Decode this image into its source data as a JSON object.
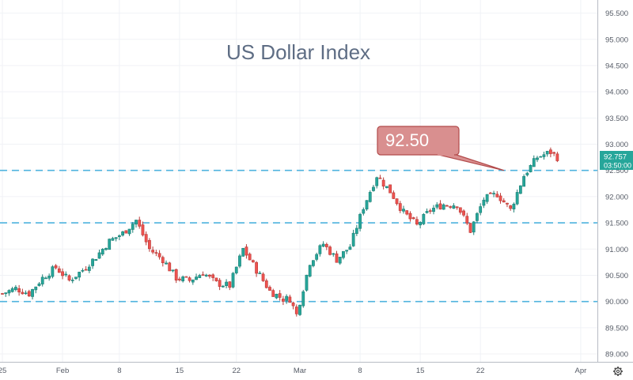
{
  "chart_data": {
    "type": "candlestick",
    "title": "US Dollar Index",
    "ylim": [
      88.85,
      95.75
    ],
    "grid": true,
    "y_ticks": [
      "95.500",
      "95.000",
      "94.500",
      "94.000",
      "93.500",
      "93.000",
      "92.500",
      "92.000",
      "91.500",
      "91.000",
      "90.500",
      "90.000",
      "89.500",
      "89.000"
    ],
    "x_ticks": [
      "25",
      "Feb",
      "8",
      "15",
      "22",
      "Mar",
      "8",
      "15",
      "22",
      "Apr"
    ],
    "last_price": "92.757",
    "countdown": "03:50:00",
    "horizontal_levels": [
      92.5,
      91.5,
      90.0
    ],
    "callout": {
      "label": "92.50",
      "value": 92.5
    },
    "anchors": [
      {
        "day": 0,
        "v": 90.15
      },
      {
        "day": 2,
        "v": 90.25
      },
      {
        "day": 4,
        "v": 90.15
      },
      {
        "day": 6,
        "v": 90.45
      },
      {
        "day": 8,
        "v": 90.65
      },
      {
        "day": 10,
        "v": 90.4
      },
      {
        "day": 12,
        "v": 90.6
      },
      {
        "day": 14,
        "v": 90.85
      },
      {
        "day": 16,
        "v": 91.15
      },
      {
        "day": 18,
        "v": 91.3
      },
      {
        "day": 20,
        "v": 91.55
      },
      {
        "day": 22,
        "v": 91.0
      },
      {
        "day": 24,
        "v": 90.8
      },
      {
        "day": 26,
        "v": 90.45
      },
      {
        "day": 28,
        "v": 90.4
      },
      {
        "day": 30,
        "v": 90.55
      },
      {
        "day": 32,
        "v": 90.35
      },
      {
        "day": 34,
        "v": 90.3
      },
      {
        "day": 36,
        "v": 91.0
      },
      {
        "day": 38,
        "v": 90.6
      },
      {
        "day": 40,
        "v": 90.2
      },
      {
        "day": 42,
        "v": 90.05
      },
      {
        "day": 43,
        "v": 90.05
      },
      {
        "day": 44,
        "v": 89.75
      },
      {
        "day": 46,
        "v": 90.75
      },
      {
        "day": 48,
        "v": 91.1
      },
      {
        "day": 50,
        "v": 90.8
      },
      {
        "day": 52,
        "v": 91.05
      },
      {
        "day": 54,
        "v": 91.8
      },
      {
        "day": 56,
        "v": 92.4
      },
      {
        "day": 58,
        "v": 92.1
      },
      {
        "day": 60,
        "v": 91.7
      },
      {
        "day": 62,
        "v": 91.45
      },
      {
        "day": 64,
        "v": 91.75
      },
      {
        "day": 66,
        "v": 91.85
      },
      {
        "day": 68,
        "v": 91.85
      },
      {
        "day": 70,
        "v": 91.35
      },
      {
        "day": 72,
        "v": 91.95
      },
      {
        "day": 74,
        "v": 92.05
      },
      {
        "day": 76,
        "v": 91.75
      },
      {
        "day": 78,
        "v": 92.4
      },
      {
        "day": 80,
        "v": 92.75
      },
      {
        "day": 82,
        "v": 92.85
      },
      {
        "day": 83,
        "v": 92.75
      }
    ]
  }
}
